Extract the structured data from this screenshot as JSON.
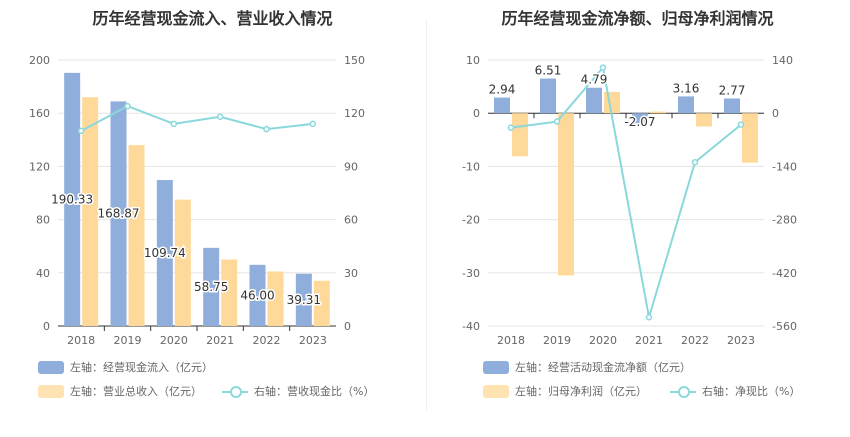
{
  "colors": {
    "blue": "#8FAEDB",
    "orange": "#FFD999",
    "teal": "#8AD8DB",
    "grid": "#E6E6E6",
    "axis": "#999999",
    "text": "#666666"
  },
  "left": {
    "title": "历年经营现金流入、营业收入情况",
    "legend": {
      "s1": "左轴：经营现金流入（亿元）",
      "s2": "左轴：营业总收入（亿元）",
      "s3": "右轴：营收现金比（%）"
    }
  },
  "right": {
    "title": "历年经营现金流净额、归母净利润情况",
    "legend": {
      "s1": "左轴：经营活动现金流净额（亿元）",
      "s2": "左轴：归母净利润（亿元）",
      "s3": "右轴：净现比（%）"
    }
  },
  "chart_data": [
    {
      "type": "bar",
      "title": "历年经营现金流入、营业收入情况",
      "categories": [
        "2018",
        "2019",
        "2020",
        "2021",
        "2022",
        "2023"
      ],
      "y_left": {
        "ylim": [
          0,
          200
        ],
        "ticks": [
          "0",
          "40",
          "80",
          "120",
          "160",
          "200"
        ]
      },
      "y_right": {
        "ylim": [
          0,
          150
        ],
        "ticks": [
          "0",
          "30",
          "60",
          "90",
          "120",
          "150"
        ]
      },
      "series": [
        {
          "name": "左轴：经营现金流入（亿元）",
          "axis": "left",
          "type": "bar",
          "values": [
            190.33,
            168.87,
            109.74,
            58.75,
            46.0,
            39.31
          ],
          "labels": [
            "190.33",
            "168.87",
            "109.74",
            "58.75",
            "46.00",
            "39.31"
          ]
        },
        {
          "name": "左轴：营业总收入（亿元）",
          "axis": "left",
          "type": "bar",
          "values": [
            172,
            136,
            95,
            50,
            41,
            34
          ]
        },
        {
          "name": "右轴：营收现金比（%）",
          "axis": "right",
          "type": "line",
          "values": [
            110,
            124,
            114,
            118,
            111,
            114
          ]
        }
      ],
      "legend_position": "bottom"
    },
    {
      "type": "bar",
      "title": "历年经营现金流净额、归母净利润情况",
      "categories": [
        "2018",
        "2019",
        "2020",
        "2021",
        "2022",
        "2023"
      ],
      "y_left": {
        "ylim": [
          -40,
          10
        ],
        "ticks": [
          "10",
          "0",
          "-10",
          "-20",
          "-30",
          "-40"
        ]
      },
      "y_right": {
        "ylim": [
          -560,
          140
        ],
        "ticks": [
          "140",
          "0",
          "-140",
          "-280",
          "-420",
          "-560"
        ]
      },
      "series": [
        {
          "name": "左轴：经营活动现金流净额（亿元）",
          "axis": "left",
          "type": "bar",
          "values": [
            2.94,
            6.51,
            4.79,
            -2.07,
            3.16,
            2.77
          ],
          "labels": [
            "2.94",
            "6.51",
            "4.79",
            "-2.07",
            "3.16",
            "2.77"
          ]
        },
        {
          "name": "左轴：归母净利润（亿元）",
          "axis": "left",
          "type": "bar",
          "values": [
            -8.1,
            -30.5,
            4.0,
            0.3,
            -2.5,
            -9.3
          ]
        },
        {
          "name": "右轴：净现比（%）",
          "axis": "right",
          "type": "line",
          "values": [
            -38,
            -22,
            120,
            -537,
            -129,
            -30
          ]
        }
      ],
      "legend_position": "bottom"
    }
  ]
}
